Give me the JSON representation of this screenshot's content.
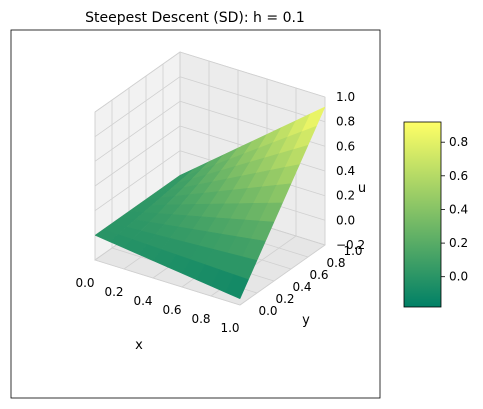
{
  "chart_data": {
    "type": "surface3d",
    "title": "Steepest Descent (SD): h = 0.1",
    "xlabel": "x",
    "ylabel": "y",
    "zlabel": "u",
    "xlim": [
      0,
      1
    ],
    "ylim": [
      0,
      1
    ],
    "zlim": [
      -0.2,
      1.0
    ],
    "x_ticks": [
      "0.0",
      "0.2",
      "0.4",
      "0.6",
      "0.8",
      "1.0"
    ],
    "y_ticks": [
      "0.0",
      "0.2",
      "0.4",
      "0.6",
      "0.8",
      "1.0"
    ],
    "z_ticks": [
      "−0.2",
      "0.0",
      "0.2",
      "0.4",
      "0.6",
      "0.8",
      "1.0"
    ],
    "grid": true,
    "colormap": "summer",
    "colormap_stops": [
      "#008066",
      "#ffff66"
    ],
    "colorbar": {
      "range": [
        -0.18,
        0.92
      ],
      "ticks": [
        "0.0",
        "0.2",
        "0.4",
        "0.6",
        "0.8"
      ],
      "tick_values": [
        0.0,
        0.2,
        0.4,
        0.6,
        0.8
      ]
    },
    "grid_points": [
      0,
      0.1,
      0.2,
      0.3,
      0.4,
      0.5,
      0.6,
      0.7,
      0.8,
      0.9,
      1.0
    ],
    "surface_corners": {
      "x0_y0": 0.0,
      "x1_y0": -0.15,
      "x0_y1": 0.0,
      "x1_y1": 0.92
    }
  }
}
